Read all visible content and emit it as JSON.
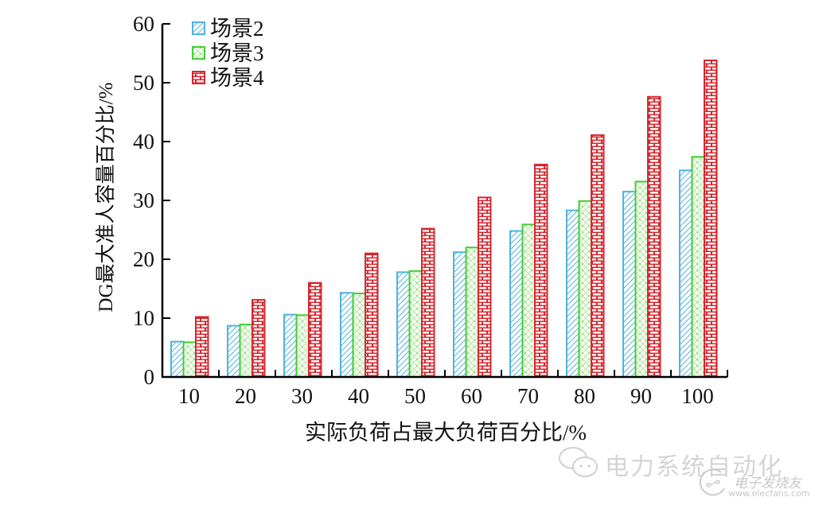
{
  "chart_data": {
    "type": "bar",
    "title": "",
    "xlabel": "实际负荷占最大负荷百分比/%",
    "ylabel": "DG最大准人容量百分比/%",
    "categories": [
      "10",
      "20",
      "30",
      "40",
      "50",
      "60",
      "70",
      "80",
      "90",
      "100"
    ],
    "series": [
      {
        "name": "场景2",
        "color": "#4fb3e0",
        "pattern": "diagonal-hatch",
        "values": [
          6.0,
          8.7,
          10.6,
          14.3,
          17.8,
          21.2,
          24.8,
          28.3,
          31.5,
          35.1
        ]
      },
      {
        "name": "场景3",
        "color": "#44cc33",
        "pattern": "cross-dots",
        "values": [
          5.9,
          8.9,
          10.5,
          14.2,
          18.0,
          22.0,
          25.9,
          29.9,
          33.2,
          37.4
        ]
      },
      {
        "name": "场景4",
        "color": "#d8262e",
        "pattern": "brick",
        "values": [
          10.2,
          13.1,
          16.0,
          21.0,
          25.2,
          30.5,
          36.1,
          41.1,
          47.6,
          53.8
        ]
      }
    ],
    "ylim": [
      0,
      60
    ],
    "yticks": [
      "0",
      "10",
      "20",
      "30",
      "40",
      "50",
      "60"
    ],
    "grid": false,
    "legend_position": "upper-left"
  },
  "watermark": {
    "main": "电力系统自动化",
    "site_cn": "电子发烧友",
    "site_url": "www.elecfans.com"
  }
}
